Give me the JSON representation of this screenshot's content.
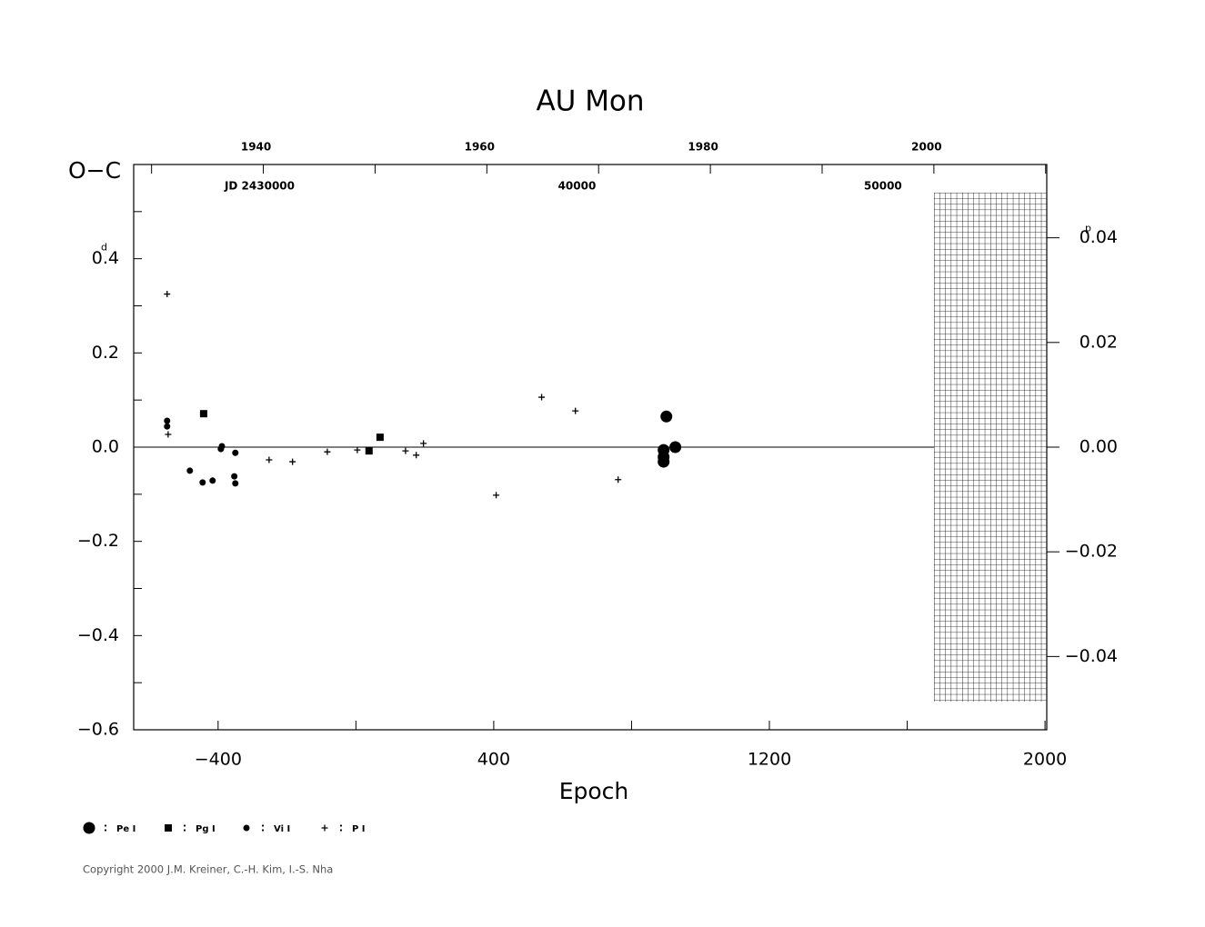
{
  "chart_data": {
    "type": "scatter",
    "title": "AU Mon",
    "xlabel": "Epoch",
    "ylabel": "O−C",
    "y_unit": "d",
    "y2_unit": "p",
    "xlim": [
      -645,
      2005
    ],
    "xticks": [
      {
        "value": -400,
        "label": "−400"
      },
      400,
      1200,
      2000
    ],
    "xminor": [
      0,
      800,
      1600
    ],
    "ylim": [
      -0.6,
      0.6
    ],
    "yticks": [
      {
        "value": -0.6,
        "label": "−0.6"
      },
      {
        "value": -0.4,
        "label": "−0.4"
      },
      {
        "value": -0.2,
        "label": "−0.2"
      },
      {
        "value": 0,
        "label": "0.0"
      },
      0.2,
      0.4
    ],
    "yminor": [
      -0.5,
      -0.3,
      -0.1,
      0.1,
      0.3,
      0.5
    ],
    "y2lim": [
      -0.054,
      0.054
    ],
    "y2ticks": [
      {
        "value": -0.04,
        "label": "−0.04"
      },
      {
        "value": -0.02,
        "label": "−0.02"
      },
      {
        "value": 0,
        "label": "0.00"
      },
      0.02,
      0.04
    ],
    "yearlim": [
      1928.4,
      2010.1
    ],
    "yearticks": [
      1940,
      1960,
      1980,
      2000
    ],
    "yearminor": [
      1930,
      1950,
      1970,
      1990,
      2010
    ],
    "jdlim": [
      2425393,
      2455234
    ],
    "jdticks": [
      {
        "value": 2430000,
        "label": "JD 2430000"
      },
      {
        "value": 2440000,
        "label": "40000"
      },
      {
        "value": 2450000,
        "label": "50000"
      }
    ],
    "series": [
      {
        "name": "Pe I",
        "marker": "big-circle",
        "color": "#000",
        "x": [
          901,
          893,
          893,
          893,
          927
        ],
        "values": [
          0.065,
          -0.006,
          -0.021,
          -0.031,
          0.0
        ]
      },
      {
        "name": "Pg I",
        "marker": "square",
        "color": "#000",
        "x": [
          -442,
          38,
          70
        ],
        "values": [
          0.071,
          -0.008,
          0.021
        ]
      },
      {
        "name": "Vi I",
        "marker": "circle",
        "color": "#000",
        "x": [
          -548,
          -548,
          -482,
          -445,
          -416,
          -389,
          -392,
          -350,
          -353,
          -350
        ],
        "values": [
          0.056,
          0.044,
          -0.05,
          -0.075,
          -0.071,
          0.002,
          -0.004,
          -0.012,
          -0.062,
          -0.077
        ]
      },
      {
        "name": "P I",
        "marker": "plus",
        "color": "#000",
        "x": [
          -548,
          -545,
          -252,
          -184,
          -83,
          4,
          144,
          175,
          196,
          407,
          539,
          637,
          761
        ],
        "values": [
          0.325,
          0.027,
          -0.027,
          -0.031,
          -0.01,
          -0.006,
          -0.008,
          -0.017,
          0.008,
          -0.102,
          0.106,
          0.077,
          -0.069
        ]
      }
    ],
    "copyright": "Copyright 2000 J.M. Kreiner, C.-H. Kim, I.-S. Nha"
  }
}
